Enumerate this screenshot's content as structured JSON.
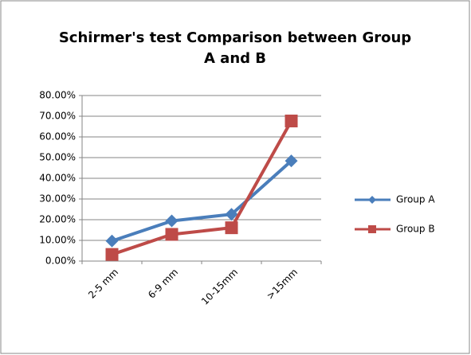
{
  "chart_data": {
    "type": "line",
    "title": [
      "Schirmer's test Comparison between Group",
      "A and B"
    ],
    "categories": [
      "2-5 mm",
      "6-9 mm",
      "10-15mm",
      ">15mm"
    ],
    "series": [
      {
        "name": "Group A",
        "color": "#4a7ebb",
        "marker": "diamond",
        "values": [
          9.7,
          19.4,
          22.6,
          48.4
        ]
      },
      {
        "name": "Group B",
        "color": "#be4b48",
        "marker": "square",
        "values": [
          3.2,
          12.9,
          16.1,
          67.7
        ]
      }
    ],
    "ylim": [
      0,
      80
    ],
    "yticks": [
      {
        "value": 0,
        "label": "0.00%"
      },
      {
        "value": 10,
        "label": "10.00%"
      },
      {
        "value": 20,
        "label": "20.00%"
      },
      {
        "value": 30,
        "label": "30.00%"
      },
      {
        "value": 40,
        "label": "40.00%"
      },
      {
        "value": 50,
        "label": "50.00%"
      },
      {
        "value": 60,
        "label": "60.00%"
      },
      {
        "value": 70,
        "label": "70.00%"
      },
      {
        "value": 80,
        "label": "80.00%"
      }
    ],
    "grid": true,
    "legend": "right"
  }
}
